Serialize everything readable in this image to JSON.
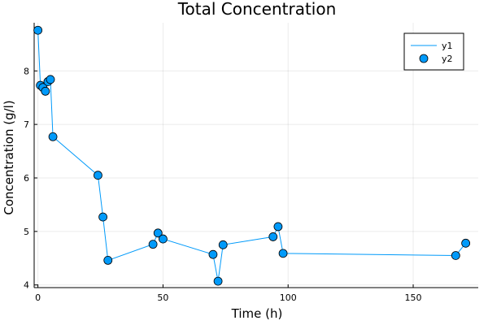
{
  "chart_data": {
    "type": "scatter",
    "title": "Total Concentration",
    "xlabel": "Time (h)",
    "ylabel": "Concentration (g/l)",
    "xlim": [
      -1.5,
      176
    ],
    "ylim": [
      3.95,
      8.9
    ],
    "xticks": [
      0,
      50,
      100,
      150
    ],
    "yticks": [
      4,
      5,
      6,
      7,
      8
    ],
    "grid": true,
    "legend_position": "top-right",
    "series": [
      {
        "name": "y1",
        "kind": "line",
        "color": "#009AFA",
        "x": [
          0,
          1,
          2,
          3,
          4,
          5,
          6,
          24,
          26,
          28,
          46,
          48,
          50,
          70,
          72,
          74,
          94,
          96,
          98,
          167,
          171
        ],
        "y": [
          8.76,
          7.73,
          7.69,
          7.62,
          7.8,
          7.84,
          6.77,
          6.05,
          5.27,
          4.46,
          4.76,
          4.97,
          4.86,
          4.57,
          4.07,
          4.75,
          4.9,
          5.09,
          4.59,
          4.55,
          4.78
        ]
      },
      {
        "name": "y2",
        "kind": "scatter",
        "color": "#009AFA",
        "x": [
          0,
          1,
          2,
          3,
          4,
          5,
          6,
          24,
          26,
          28,
          46,
          48,
          50,
          70,
          72,
          74,
          94,
          96,
          98,
          167,
          171
        ],
        "y": [
          8.76,
          7.73,
          7.69,
          7.62,
          7.8,
          7.84,
          6.77,
          6.05,
          5.27,
          4.46,
          4.76,
          4.97,
          4.86,
          4.57,
          4.07,
          4.75,
          4.9,
          5.09,
          4.59,
          4.55,
          4.78
        ]
      }
    ]
  }
}
